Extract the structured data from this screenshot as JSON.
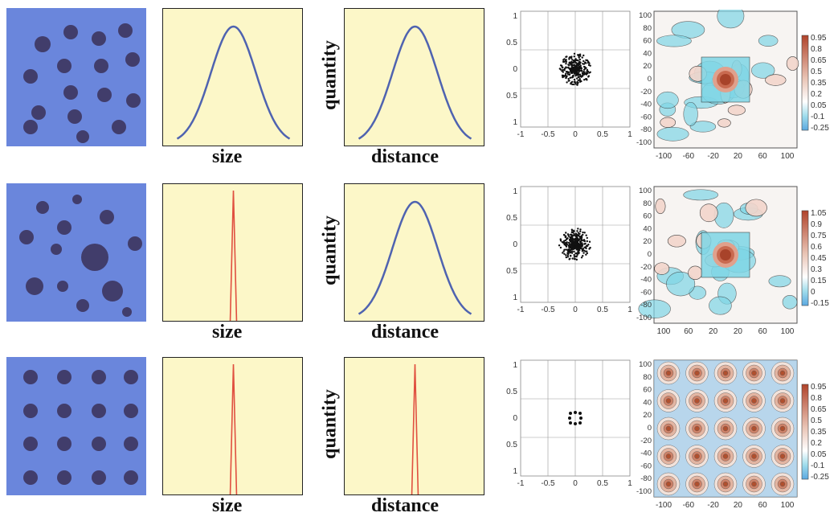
{
  "labels": {
    "size": "size",
    "distance": "distance",
    "quantity": "quantity"
  },
  "rows": [
    {
      "name": "random-size-random-position",
      "size_distribution": "broad",
      "distance_distribution": "broad",
      "scatter": "cloud",
      "contour_ticks": [
        "0.95",
        "0.8",
        "0.65",
        "0.5",
        "0.35",
        "0.2",
        "0.05",
        "-0.1",
        "-0.25"
      ],
      "map_pattern": "random"
    },
    {
      "name": "uniform-size-random-position",
      "size_distribution": "narrow",
      "distance_distribution": "broad",
      "scatter": "cloud",
      "contour_ticks": [
        "1.05",
        "0.9",
        "0.75",
        "0.6",
        "0.45",
        "0.3",
        "0.15",
        "0",
        "-0.15"
      ],
      "map_pattern": "random"
    },
    {
      "name": "uniform-size-lattice-position",
      "size_distribution": "narrow",
      "distance_distribution": "narrow",
      "scatter": "lattice",
      "contour_ticks": [
        "0.95",
        "0.8",
        "0.65",
        "0.5",
        "0.35",
        "0.2",
        "0.05",
        "-0.1",
        "-0.25"
      ],
      "map_pattern": "lattice"
    }
  ],
  "scatter_axis": {
    "x_ticks": [
      "-1",
      "-0.5",
      "0",
      "0.5",
      "1"
    ],
    "y_ticks": [
      "-1",
      "-0.5",
      "0",
      "0.5",
      "1"
    ]
  },
  "contour_axis": {
    "x_ticks": [
      "-100",
      "-60",
      "-20",
      "20",
      "60",
      "100"
    ],
    "x_ticks_row2": [
      "100",
      "60",
      "20",
      "20",
      "60",
      "100"
    ],
    "y_ticks": [
      "100",
      "80",
      "60",
      "40",
      "20",
      "0",
      "-20",
      "-40",
      "-60",
      "-80",
      "-100"
    ]
  },
  "colors": {
    "panel_blue": "#6a86dc",
    "dot": "#413d6b",
    "panel_yellow": "#fcf7c8",
    "broad_curve": "#4f63b0",
    "narrow_curve": "#e05040",
    "cold": "#7fd6e6",
    "warm": "#c0533a"
  }
}
